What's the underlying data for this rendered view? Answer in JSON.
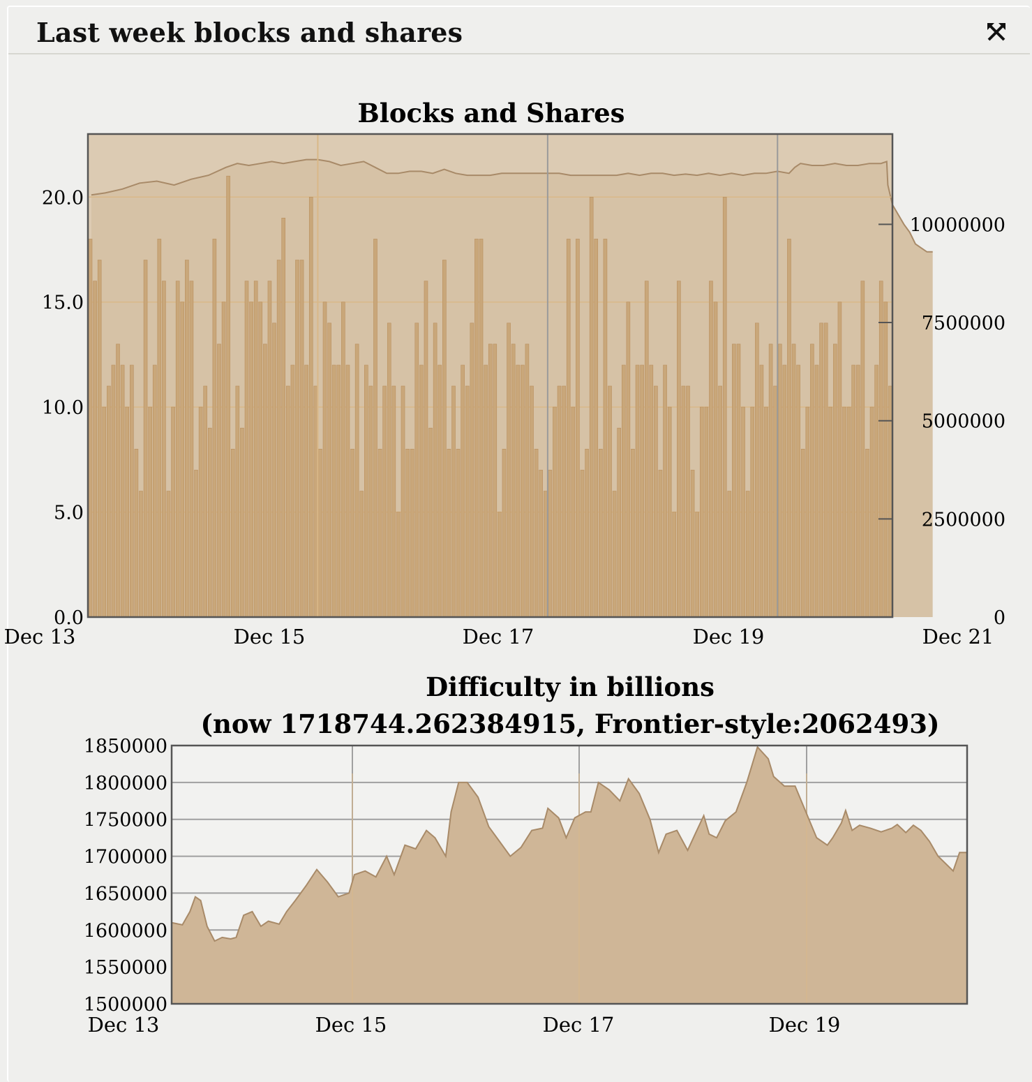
{
  "panel": {
    "title": "Last week blocks and shares",
    "expand_icon": "expand-arrows-icon"
  },
  "colors": {
    "page_bg": "#efefed",
    "plot_bg": "#dccbb3",
    "bar_fill": "#c9a77a",
    "bar_stroke": "#b98f5e",
    "area_fill": "#cfb697",
    "line": "#a88a68",
    "grid_warm": "#d9b888",
    "grid_grey": "#a0a0a0",
    "frame": "#555555"
  },
  "chart_data": [
    {
      "type": "bar",
      "title": "Blocks and Shares",
      "x_ticks": [
        "Dec 13",
        "Dec 15",
        "Dec 17",
        "Dec 19",
        "Dec 21"
      ],
      "y_left_ticks": [
        "0.0",
        "5.0",
        "10.0",
        "15.0",
        "20.0"
      ],
      "y_left_lim": [
        0,
        23
      ],
      "y_right_ticks": [
        "0",
        "2500000",
        "5000000",
        "7500000",
        "10000000"
      ],
      "y_right_lim": [
        0,
        12300000
      ],
      "grid": true,
      "series": [
        {
          "kind": "bar",
          "axis": "left",
          "values": [
            18,
            16,
            17,
            10,
            11,
            12,
            13,
            12,
            10,
            12,
            8,
            6,
            17,
            10,
            12,
            18,
            16,
            6,
            10,
            16,
            15,
            17,
            16,
            7,
            10,
            11,
            9,
            18,
            13,
            15,
            21,
            8,
            11,
            9,
            16,
            15,
            16,
            15,
            13,
            16,
            14,
            17,
            19,
            11,
            12,
            17,
            17,
            12,
            20,
            11,
            8,
            15,
            14,
            12,
            12,
            15,
            12,
            8,
            13,
            6,
            12,
            11,
            18,
            8,
            11,
            14,
            11,
            5,
            11,
            8,
            8,
            14,
            12,
            16,
            9,
            14,
            12,
            17,
            8,
            11,
            8,
            12,
            11,
            14,
            18,
            18,
            12,
            13,
            13,
            5,
            8,
            14,
            13,
            12,
            12,
            13,
            11,
            8,
            7,
            6,
            7,
            10,
            11,
            11,
            18,
            10,
            18,
            7,
            8,
            20,
            18,
            8,
            18,
            11,
            6,
            9,
            12,
            15,
            8,
            12,
            12,
            16,
            12,
            11,
            7,
            12,
            10,
            5,
            16,
            11,
            11,
            7,
            5,
            10,
            10,
            16,
            15,
            11,
            20,
            6,
            13,
            13,
            10,
            6,
            10,
            14,
            12,
            10,
            13,
            11,
            13,
            12,
            18,
            13,
            12,
            8,
            10,
            13,
            12,
            14,
            14,
            10,
            13,
            15,
            10,
            10,
            12,
            12,
            16,
            8,
            10,
            12,
            16,
            15,
            11
          ]
        },
        {
          "kind": "area",
          "axis": "right",
          "x_range_days": [
            0,
            7.72
          ],
          "points": [
            [
              0.03,
              10750000
            ],
            [
              0.15,
              10800000
            ],
            [
              0.3,
              10900000
            ],
            [
              0.45,
              11050000
            ],
            [
              0.6,
              11100000
            ],
            [
              0.75,
              11000000
            ],
            [
              0.9,
              11150000
            ],
            [
              1.05,
              11250000
            ],
            [
              1.2,
              11450000
            ],
            [
              1.3,
              11550000
            ],
            [
              1.4,
              11500000
            ],
            [
              1.5,
              11550000
            ],
            [
              1.6,
              11600000
            ],
            [
              1.7,
              11550000
            ],
            [
              1.8,
              11600000
            ],
            [
              1.9,
              11650000
            ],
            [
              2.0,
              11650000
            ],
            [
              2.1,
              11600000
            ],
            [
              2.2,
              11500000
            ],
            [
              2.3,
              11550000
            ],
            [
              2.4,
              11600000
            ],
            [
              2.5,
              11450000
            ],
            [
              2.6,
              11300000
            ],
            [
              2.7,
              11300000
            ],
            [
              2.8,
              11350000
            ],
            [
              2.9,
              11350000
            ],
            [
              3.0,
              11300000
            ],
            [
              3.1,
              11400000
            ],
            [
              3.2,
              11300000
            ],
            [
              3.3,
              11250000
            ],
            [
              3.4,
              11250000
            ],
            [
              3.5,
              11250000
            ],
            [
              3.6,
              11300000
            ],
            [
              3.7,
              11300000
            ],
            [
              3.8,
              11300000
            ],
            [
              3.9,
              11300000
            ],
            [
              4.0,
              11300000
            ],
            [
              4.1,
              11300000
            ],
            [
              4.2,
              11250000
            ],
            [
              4.3,
              11250000
            ],
            [
              4.4,
              11250000
            ],
            [
              4.5,
              11250000
            ],
            [
              4.6,
              11250000
            ],
            [
              4.7,
              11300000
            ],
            [
              4.8,
              11250000
            ],
            [
              4.9,
              11300000
            ],
            [
              5.0,
              11300000
            ],
            [
              5.1,
              11250000
            ],
            [
              5.2,
              11280000
            ],
            [
              5.3,
              11250000
            ],
            [
              5.4,
              11300000
            ],
            [
              5.5,
              11250000
            ],
            [
              5.6,
              11300000
            ],
            [
              5.7,
              11250000
            ],
            [
              5.8,
              11300000
            ],
            [
              5.9,
              11300000
            ],
            [
              6.0,
              11350000
            ],
            [
              6.1,
              11300000
            ],
            [
              6.15,
              11450000
            ],
            [
              6.2,
              11550000
            ],
            [
              6.3,
              11500000
            ],
            [
              6.4,
              11500000
            ],
            [
              6.5,
              11550000
            ],
            [
              6.6,
              11500000
            ],
            [
              6.7,
              11500000
            ],
            [
              6.8,
              11550000
            ],
            [
              6.9,
              11550000
            ],
            [
              6.95,
              11600000
            ],
            [
              6.96,
              11000000
            ],
            [
              7.0,
              10500000
            ],
            [
              7.1,
              10000000
            ],
            [
              7.15,
              9800000
            ],
            [
              7.2,
              9500000
            ],
            [
              7.25,
              9400000
            ],
            [
              7.3,
              9300000
            ],
            [
              7.35,
              9300000
            ]
          ]
        }
      ]
    },
    {
      "type": "area",
      "title": "Difficulty in billions",
      "subtitle": "(now 1718744.262384915, Frontier-style:2062493)",
      "x_ticks": [
        "Dec 13",
        "Dec 15",
        "Dec 17",
        "Dec 19"
      ],
      "y_ticks": [
        "1500000",
        "1550000",
        "1600000",
        "1650000",
        "1700000",
        "1750000",
        "1800000",
        "1850000"
      ],
      "ylim": [
        1500000,
        1850000
      ],
      "x_range_days": [
        0.45,
        7.45
      ],
      "grid": true,
      "points": [
        [
          0.45,
          1610000
        ],
        [
          0.55,
          1607000
        ],
        [
          0.62,
          1625000
        ],
        [
          0.67,
          1645000
        ],
        [
          0.72,
          1640000
        ],
        [
          0.78,
          1605000
        ],
        [
          0.85,
          1585000
        ],
        [
          0.92,
          1590000
        ],
        [
          1.0,
          1588000
        ],
        [
          1.05,
          1590000
        ],
        [
          1.12,
          1620000
        ],
        [
          1.2,
          1625000
        ],
        [
          1.28,
          1605000
        ],
        [
          1.35,
          1612000
        ],
        [
          1.45,
          1608000
        ],
        [
          1.52,
          1625000
        ],
        [
          1.6,
          1640000
        ],
        [
          1.7,
          1660000
        ],
        [
          1.8,
          1682000
        ],
        [
          1.9,
          1665000
        ],
        [
          2.0,
          1645000
        ],
        [
          2.1,
          1650000
        ],
        [
          2.15,
          1675000
        ],
        [
          2.25,
          1680000
        ],
        [
          2.35,
          1672000
        ],
        [
          2.45,
          1700000
        ],
        [
          2.52,
          1675000
        ],
        [
          2.62,
          1715000
        ],
        [
          2.72,
          1710000
        ],
        [
          2.82,
          1735000
        ],
        [
          2.9,
          1725000
        ],
        [
          3.0,
          1700000
        ],
        [
          3.05,
          1760000
        ],
        [
          3.12,
          1800000
        ],
        [
          3.2,
          1800000
        ],
        [
          3.3,
          1780000
        ],
        [
          3.4,
          1740000
        ],
        [
          3.5,
          1720000
        ],
        [
          3.6,
          1700000
        ],
        [
          3.7,
          1712000
        ],
        [
          3.8,
          1735000
        ],
        [
          3.9,
          1738000
        ],
        [
          3.95,
          1765000
        ],
        [
          4.05,
          1752000
        ],
        [
          4.12,
          1725000
        ],
        [
          4.2,
          1752000
        ],
        [
          4.3,
          1760000
        ],
        [
          4.35,
          1760000
        ],
        [
          4.42,
          1800000
        ],
        [
          4.52,
          1790000
        ],
        [
          4.62,
          1775000
        ],
        [
          4.7,
          1805000
        ],
        [
          4.8,
          1785000
        ],
        [
          4.9,
          1750000
        ],
        [
          4.98,
          1705000
        ],
        [
          5.05,
          1730000
        ],
        [
          5.15,
          1735000
        ],
        [
          5.25,
          1708000
        ],
        [
          5.32,
          1730000
        ],
        [
          5.4,
          1755000
        ],
        [
          5.45,
          1730000
        ],
        [
          5.52,
          1725000
        ],
        [
          5.6,
          1748000
        ],
        [
          5.7,
          1760000
        ],
        [
          5.8,
          1800000
        ],
        [
          5.9,
          1848000
        ],
        [
          6.0,
          1832000
        ],
        [
          6.05,
          1808000
        ],
        [
          6.15,
          1795000
        ],
        [
          6.25,
          1795000
        ],
        [
          6.35,
          1760000
        ],
        [
          6.45,
          1725000
        ],
        [
          6.55,
          1715000
        ],
        [
          6.6,
          1725000
        ],
        [
          6.68,
          1745000
        ],
        [
          6.72,
          1762000
        ],
        [
          6.78,
          1735000
        ],
        [
          6.85,
          1742000
        ],
        [
          6.95,
          1738000
        ],
        [
          7.05,
          1733000
        ],
        [
          7.15,
          1738000
        ],
        [
          7.2,
          1743000
        ],
        [
          7.28,
          1732000
        ],
        [
          7.35,
          1742000
        ],
        [
          7.42,
          1735000
        ],
        [
          7.5,
          1720000
        ],
        [
          7.58,
          1700000
        ],
        [
          7.65,
          1690000
        ],
        [
          7.72,
          1680000
        ],
        [
          7.78,
          1705000
        ],
        [
          7.85,
          1705000
        ]
      ]
    }
  ]
}
